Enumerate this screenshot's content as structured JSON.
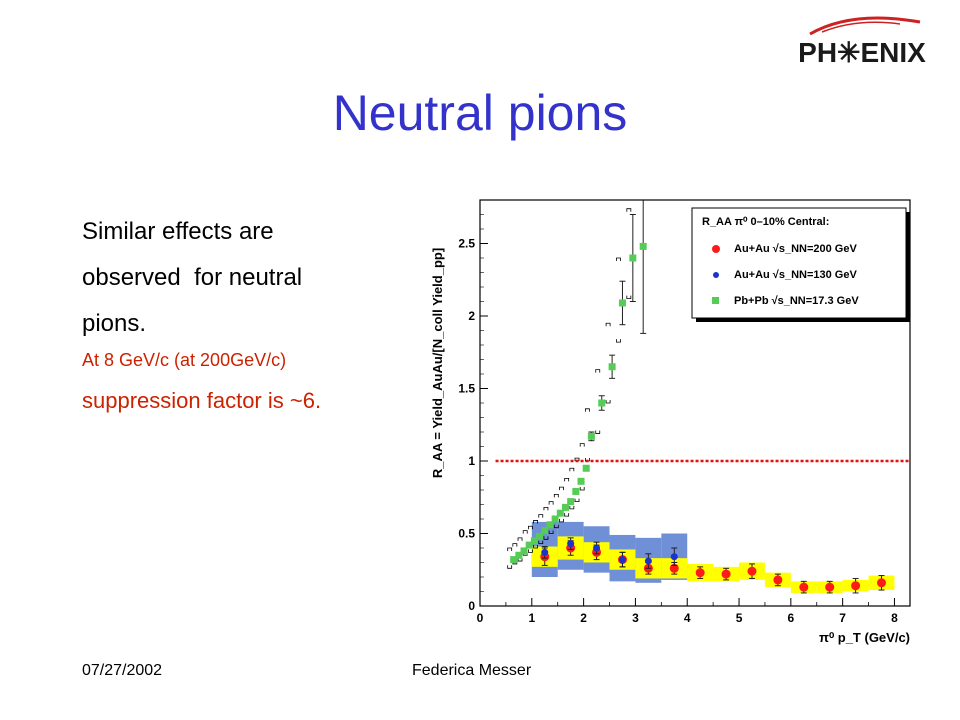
{
  "logo": {
    "text": "PH✳ENIX"
  },
  "slide": {
    "title": "Neutral pions",
    "bullets": [
      "Similar effects are",
      "observed  for neutral",
      "pions."
    ],
    "notes": [
      "At 8 GeV/c (at 200GeV/c)",
      "suppression factor is ~6."
    ]
  },
  "footer": {
    "date": "07/27/2002",
    "author": "Federica Messer"
  },
  "colors": {
    "title": "#3333cc",
    "note": "#cc2200",
    "auau200": "#ff1a1a",
    "auau130": "#1a33cc",
    "pbpb": "#55cc55",
    "band_yellow": "#ffff00",
    "band_blue": "#6f8fd6",
    "ref_line": "#e01010"
  },
  "chart_data": {
    "type": "scatter",
    "xlabel": "π⁰ p_T  (GeV/c)",
    "ylabel": "R_AA = Yield_AuAu/[N_coll Yield_pp]",
    "xlim": [
      0,
      8.3
    ],
    "ylim": [
      0,
      2.8
    ],
    "x_ticks": [
      0,
      1,
      2,
      3,
      4,
      5,
      6,
      7,
      8
    ],
    "y_ticks": [
      0,
      0.5,
      1,
      1.5,
      2,
      2.5
    ],
    "y_tick_labels": [
      "0",
      "0.5",
      "1",
      "1.5",
      "2",
      "2.5"
    ],
    "reference_line": {
      "y": 1,
      "style": "dotted"
    },
    "legend": {
      "title": "R_AA π⁰  0–10% Central:",
      "position": "top-right",
      "entries": [
        {
          "label": "Au+Au  √s_NN=200 GeV"
        },
        {
          "label": "Au+Au  √s_NN=130 GeV"
        },
        {
          "label": "Pb+Pb  √s_NN=17.3 GeV"
        }
      ]
    },
    "series": [
      {
        "key": "auau200",
        "x": [
          1.25,
          1.75,
          2.25,
          2.75,
          3.25,
          3.75,
          4.25,
          4.75,
          5.25,
          5.75,
          6.25,
          6.75,
          7.25,
          7.75
        ],
        "y": [
          0.34,
          0.4,
          0.37,
          0.32,
          0.26,
          0.26,
          0.23,
          0.22,
          0.24,
          0.18,
          0.13,
          0.13,
          0.14,
          0.16
        ],
        "err": [
          0.06,
          0.05,
          0.05,
          0.05,
          0.04,
          0.04,
          0.04,
          0.04,
          0.05,
          0.04,
          0.04,
          0.04,
          0.05,
          0.05
        ]
      },
      {
        "key": "auau130",
        "x": [
          1.25,
          1.75,
          2.25,
          2.75,
          3.25,
          3.75
        ],
        "y": [
          0.37,
          0.43,
          0.4,
          0.32,
          0.31,
          0.34
        ],
        "err": [
          0.04,
          0.04,
          0.04,
          0.05,
          0.05,
          0.06
        ]
      },
      {
        "key": "pbpb",
        "x": [
          0.65,
          0.75,
          0.85,
          0.95,
          1.05,
          1.15,
          1.25,
          1.35,
          1.45,
          1.55,
          1.65,
          1.75,
          1.85,
          1.95,
          2.05,
          2.15,
          2.35,
          2.55,
          2.75,
          2.95,
          3.15
        ],
        "y": [
          0.32,
          0.35,
          0.38,
          0.42,
          0.45,
          0.48,
          0.52,
          0.56,
          0.6,
          0.64,
          0.68,
          0.72,
          0.79,
          0.86,
          0.95,
          1.17,
          1.4,
          1.65,
          2.09,
          2.4,
          2.48
        ],
        "err": [
          0,
          0,
          0,
          0,
          0,
          0,
          0,
          0,
          0,
          0,
          0,
          0,
          0,
          0,
          0,
          0.03,
          0.05,
          0.08,
          0.15,
          0.3,
          0.6
        ]
      }
    ],
    "systematic_bands": [
      {
        "key": "blue_130",
        "x0": [
          1.0,
          1.5,
          2.0,
          2.5,
          3.0,
          3.5
        ],
        "x1": [
          1.5,
          2.0,
          2.5,
          3.0,
          3.5,
          4.0
        ],
        "ylo": [
          0.2,
          0.25,
          0.23,
          0.17,
          0.16,
          0.18
        ],
        "yhi": [
          0.58,
          0.58,
          0.55,
          0.49,
          0.47,
          0.5
        ]
      },
      {
        "key": "yellow_200",
        "x0": [
          1.0,
          1.5,
          2.0,
          2.5,
          3.0,
          3.5,
          4.0,
          4.5,
          5.0,
          5.5,
          6.0,
          6.5,
          7.0,
          7.5
        ],
        "x1": [
          1.5,
          2.0,
          2.5,
          3.0,
          3.5,
          4.0,
          4.5,
          5.0,
          5.5,
          6.0,
          6.5,
          7.0,
          7.5,
          8.0
        ],
        "ylo": [
          0.27,
          0.32,
          0.3,
          0.25,
          0.19,
          0.19,
          0.17,
          0.17,
          0.18,
          0.13,
          0.09,
          0.09,
          0.1,
          0.11
        ],
        "yhi": [
          0.41,
          0.48,
          0.44,
          0.39,
          0.33,
          0.33,
          0.29,
          0.27,
          0.3,
          0.23,
          0.17,
          0.17,
          0.18,
          0.21
        ]
      }
    ],
    "systematic_brackets": {
      "x": [
        0.65,
        0.75,
        0.85,
        0.95,
        1.05,
        1.15,
        1.25,
        1.35,
        1.45,
        1.55,
        1.65,
        1.75,
        1.85,
        1.95,
        2.05,
        2.15,
        2.35,
        2.55,
        2.75,
        2.95
      ],
      "lo": [
        0.26,
        0.29,
        0.31,
        0.35,
        0.37,
        0.4,
        0.43,
        0.46,
        0.5,
        0.54,
        0.58,
        0.62,
        0.67,
        0.72,
        0.8,
        1.0,
        1.19,
        1.4,
        1.82,
        2.12
      ],
      "hi": [
        0.4,
        0.43,
        0.47,
        0.52,
        0.55,
        0.59,
        0.63,
        0.68,
        0.72,
        0.77,
        0.82,
        0.88,
        0.95,
        1.02,
        1.12,
        1.36,
        1.63,
        1.95,
        2.4,
        2.74
      ]
    }
  }
}
